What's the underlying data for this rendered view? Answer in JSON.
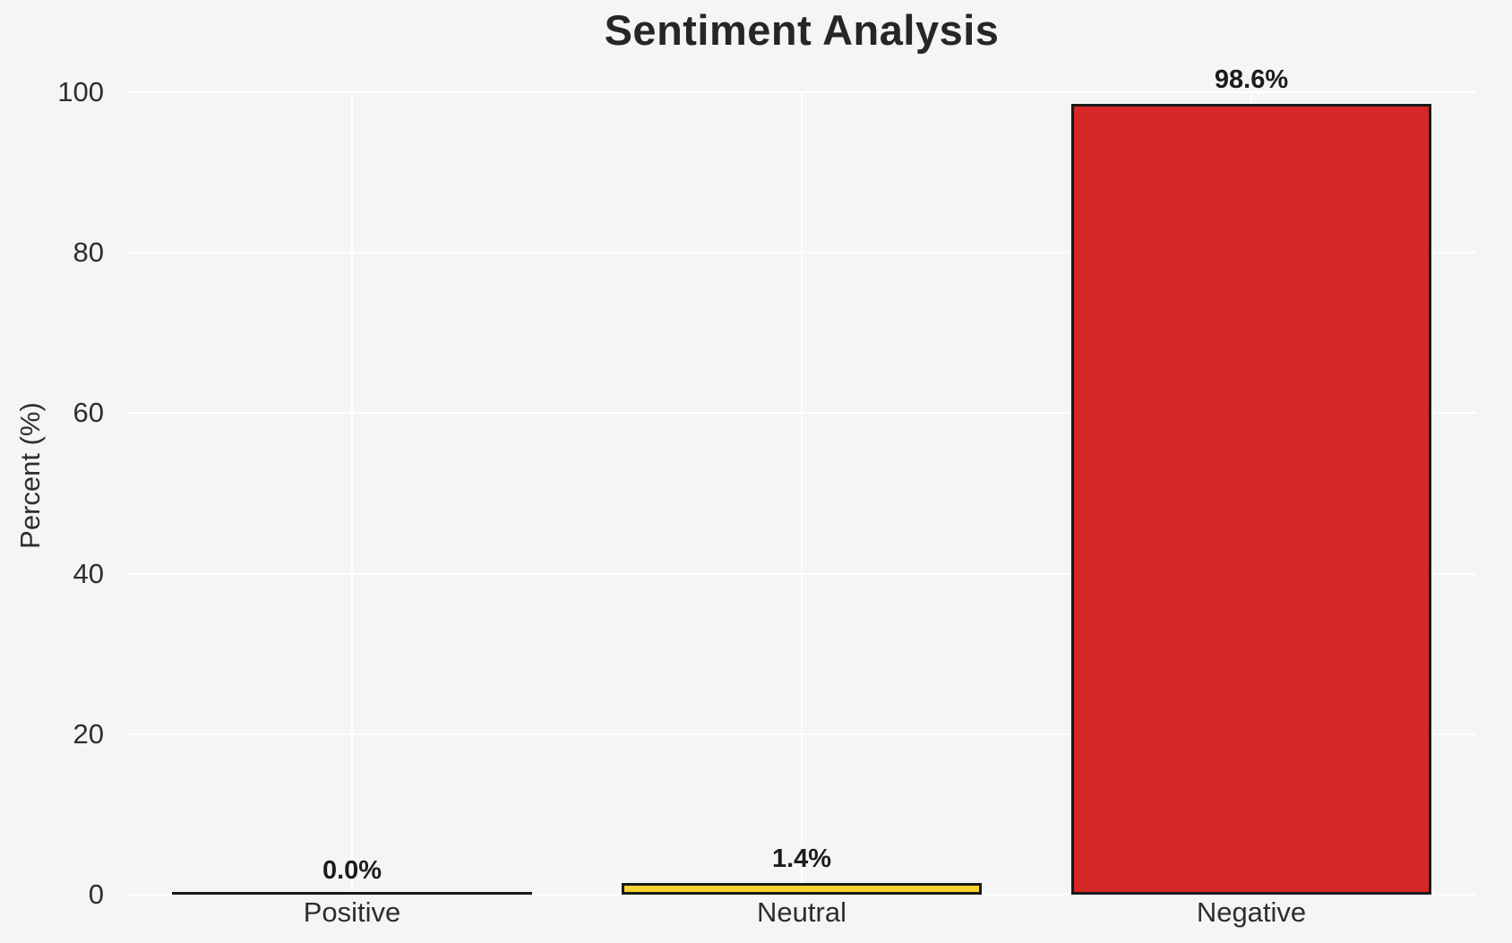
{
  "figure": {
    "background_color": "#f5f5f6",
    "grid_color": "#ffffff",
    "title_color": "#262626",
    "tick_label_color": "#2e2e2e",
    "value_label_color": "#1c1c1c"
  },
  "chart_data": {
    "type": "bar",
    "title": "Sentiment Analysis",
    "xlabel": "",
    "ylabel": "Percent (%)",
    "ylim": [
      0,
      100
    ],
    "yticks": [
      "0",
      "20",
      "40",
      "60",
      "80",
      "100"
    ],
    "grid": true,
    "legend": false,
    "categories": [
      "Positive",
      "Neutral",
      "Negative"
    ],
    "values": [
      0.0,
      1.4,
      98.6
    ],
    "value_labels": [
      "0.0%",
      "1.4%",
      "98.6%"
    ],
    "bar_colors": [
      "transparent",
      "#f5d32e",
      "#d62728"
    ],
    "bar_edge_color": "#1a1a1a"
  }
}
